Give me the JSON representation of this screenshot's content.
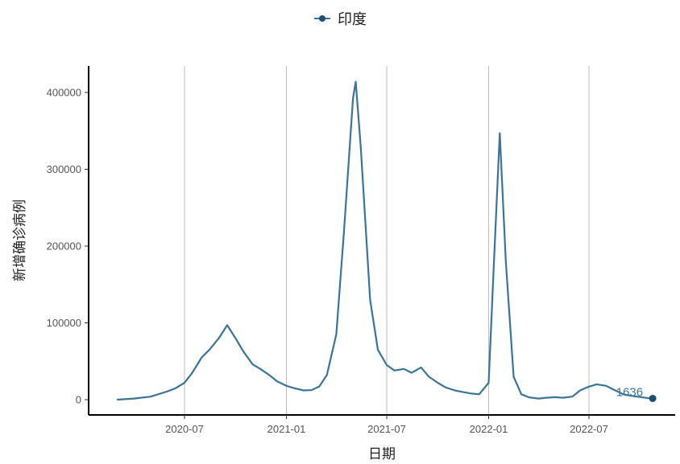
{
  "colors": {
    "series": "#3a7599",
    "marker": "#1d4f74",
    "grid": "#bdbdbd",
    "axis": "#000000"
  },
  "legend": {
    "label": "印度",
    "icon": "line-dot-icon"
  },
  "chart_data": {
    "type": "line",
    "xlabel": "日期",
    "ylabel": "新增确诊病例",
    "legend_position": "top",
    "grid": "vertical-major",
    "x_range": [
      "2020-03-01",
      "2022-10-24"
    ],
    "ylim": [
      0,
      420000
    ],
    "x_ticks": [
      {
        "date": "2020-07-01",
        "label": "2020-07"
      },
      {
        "date": "2021-01-01",
        "label": "2021-01"
      },
      {
        "date": "2021-07-01",
        "label": "2021-07"
      },
      {
        "date": "2022-01-01",
        "label": "2022-01"
      },
      {
        "date": "2022-07-01",
        "label": "2022-07"
      }
    ],
    "y_ticks": [
      0,
      100000,
      200000,
      300000,
      400000
    ],
    "series": [
      {
        "name": "印度",
        "end_label": "1636",
        "points": [
          [
            "2020-03-01",
            0
          ],
          [
            "2020-04-01",
            1500
          ],
          [
            "2020-05-01",
            4000
          ],
          [
            "2020-06-01",
            11000
          ],
          [
            "2020-06-15",
            15000
          ],
          [
            "2020-07-01",
            22000
          ],
          [
            "2020-07-15",
            35000
          ],
          [
            "2020-08-01",
            55000
          ],
          [
            "2020-08-15",
            65000
          ],
          [
            "2020-09-01",
            80000
          ],
          [
            "2020-09-16",
            97000
          ],
          [
            "2020-10-01",
            80000
          ],
          [
            "2020-10-15",
            63000
          ],
          [
            "2020-11-01",
            46000
          ],
          [
            "2020-11-15",
            40000
          ],
          [
            "2020-12-01",
            32000
          ],
          [
            "2020-12-15",
            24000
          ],
          [
            "2021-01-01",
            18000
          ],
          [
            "2021-01-15",
            15000
          ],
          [
            "2021-02-01",
            12000
          ],
          [
            "2021-02-15",
            12500
          ],
          [
            "2021-03-01",
            17000
          ],
          [
            "2021-03-15",
            32000
          ],
          [
            "2021-04-01",
            85000
          ],
          [
            "2021-04-15",
            220000
          ],
          [
            "2021-05-01",
            392000
          ],
          [
            "2021-05-06",
            414000
          ],
          [
            "2021-05-15",
            330000
          ],
          [
            "2021-06-01",
            130000
          ],
          [
            "2021-06-15",
            65000
          ],
          [
            "2021-07-01",
            45000
          ],
          [
            "2021-07-15",
            38000
          ],
          [
            "2021-08-01",
            40000
          ],
          [
            "2021-08-15",
            35000
          ],
          [
            "2021-09-01",
            42000
          ],
          [
            "2021-09-15",
            30000
          ],
          [
            "2021-10-01",
            22000
          ],
          [
            "2021-10-15",
            16000
          ],
          [
            "2021-11-01",
            12000
          ],
          [
            "2021-11-15",
            10000
          ],
          [
            "2021-12-01",
            8000
          ],
          [
            "2021-12-15",
            7000
          ],
          [
            "2022-01-01",
            22000
          ],
          [
            "2022-01-10",
            170000
          ],
          [
            "2022-01-21",
            347000
          ],
          [
            "2022-02-01",
            180000
          ],
          [
            "2022-02-15",
            30000
          ],
          [
            "2022-03-01",
            7000
          ],
          [
            "2022-03-15",
            3000
          ],
          [
            "2022-04-01",
            1500
          ],
          [
            "2022-04-15",
            2500
          ],
          [
            "2022-05-01",
            3200
          ],
          [
            "2022-05-15",
            2500
          ],
          [
            "2022-06-01",
            4000
          ],
          [
            "2022-06-15",
            12000
          ],
          [
            "2022-07-01",
            17000
          ],
          [
            "2022-07-15",
            20000
          ],
          [
            "2022-08-01",
            18000
          ],
          [
            "2022-08-15",
            13000
          ],
          [
            "2022-09-01",
            7000
          ],
          [
            "2022-09-15",
            5000
          ],
          [
            "2022-10-01",
            3500
          ],
          [
            "2022-10-15",
            2100
          ],
          [
            "2022-10-24",
            1636
          ]
        ]
      }
    ]
  }
}
